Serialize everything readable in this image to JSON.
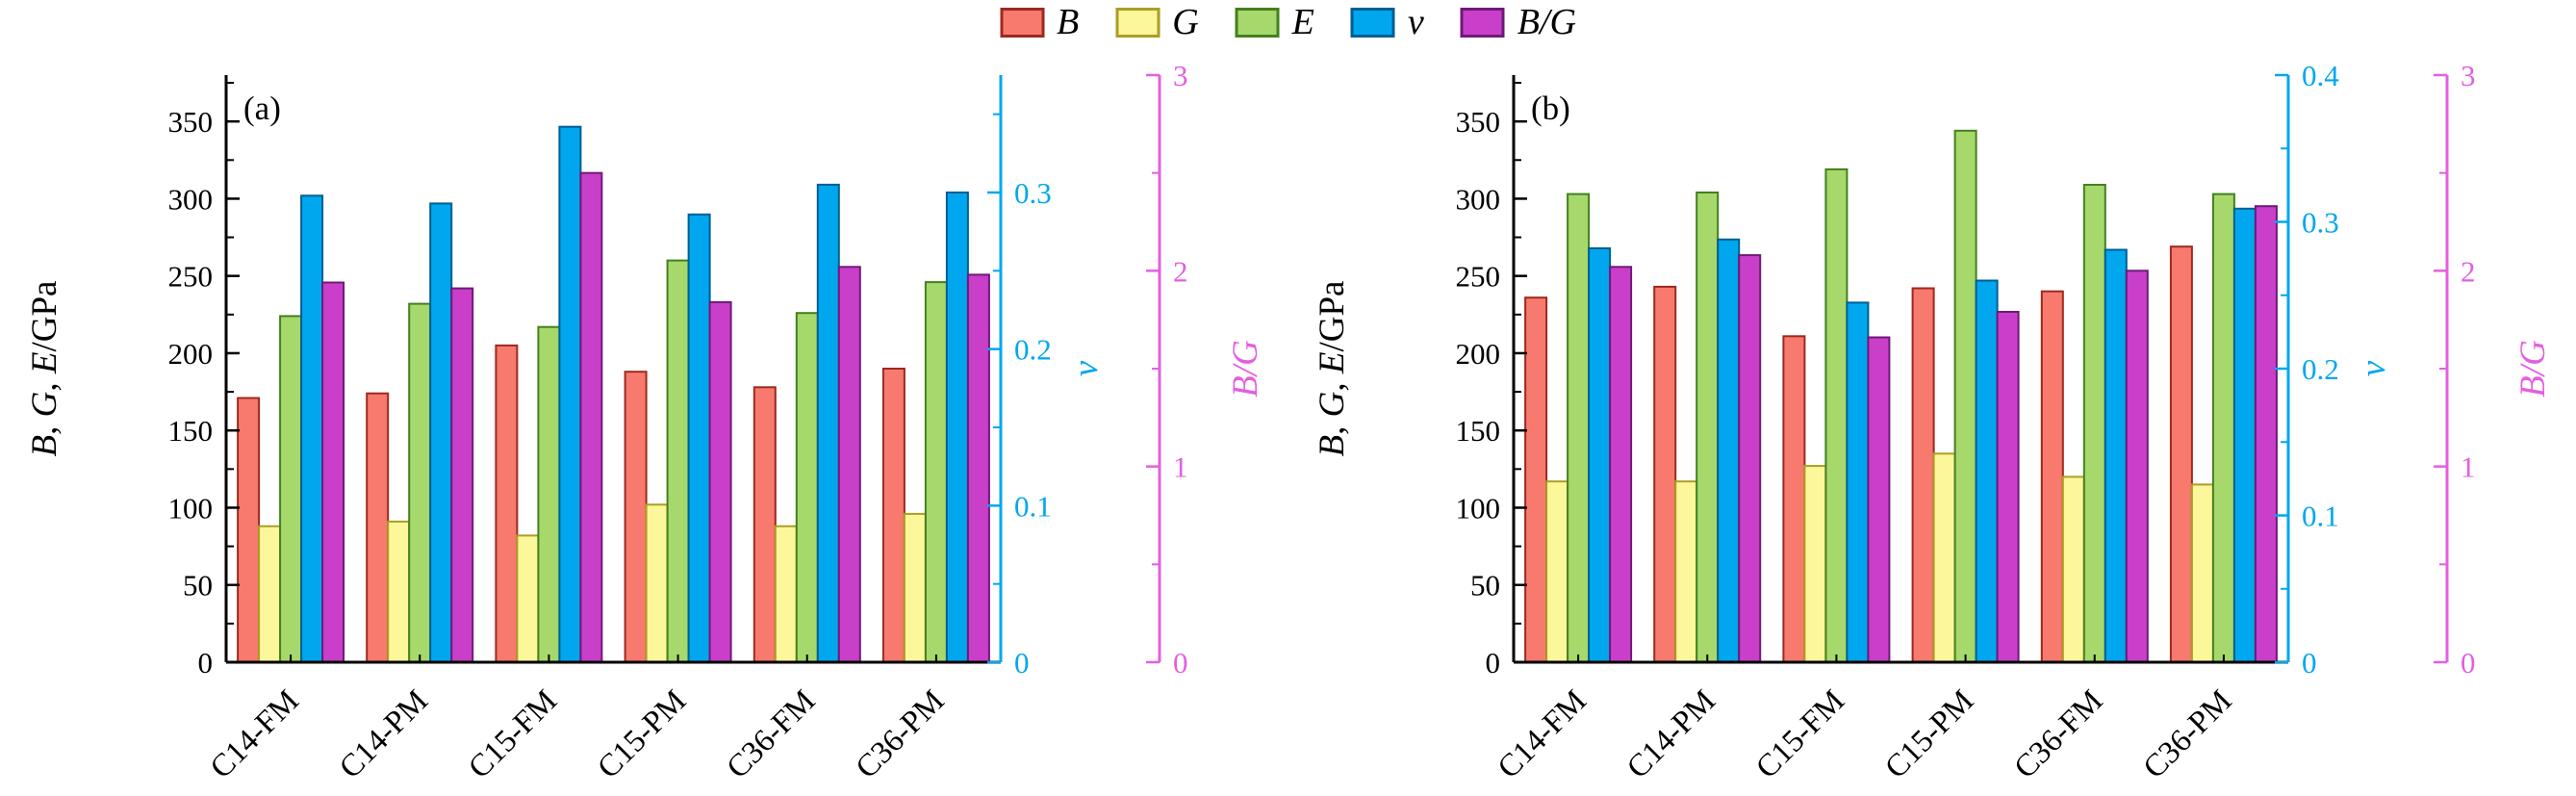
{
  "figure": {
    "background": "#ffffff"
  },
  "legend": {
    "items": [
      {
        "label": "B",
        "series": "B"
      },
      {
        "label": "G",
        "series": "G"
      },
      {
        "label": "E",
        "series": "E"
      },
      {
        "label": "ν",
        "series": "nu"
      },
      {
        "label": "B/G",
        "series": "bg"
      }
    ]
  },
  "style": {
    "series": {
      "B": {
        "fill": "#f8796e",
        "edge": "#9c2a1e"
      },
      "G": {
        "fill": "#fdf79b",
        "edge": "#ab9d24"
      },
      "E": {
        "fill": "#a6d86c",
        "edge": "#44801f"
      },
      "nu": {
        "fill": "#00a7ef",
        "edge": "#005f92"
      },
      "bg": {
        "fill": "#c93fc9",
        "edge": "#6e1a78"
      }
    },
    "axes": {
      "black": "#000000",
      "nu": "#00a7ef",
      "bg": "#e45fe0"
    }
  },
  "chart_data": [
    {
      "type": "bar",
      "panel_label": "(a)",
      "categories": [
        "C14-FM",
        "C14-PM",
        "C15-FM",
        "C15-PM",
        "C36-FM",
        "C36-PM"
      ],
      "series": [
        {
          "key": "B",
          "name": "B",
          "axis": "gpa",
          "values": [
            171,
            174,
            205,
            188,
            178,
            190
          ]
        },
        {
          "key": "G",
          "name": "G",
          "axis": "gpa",
          "values": [
            88,
            91,
            82,
            102,
            88,
            96
          ]
        },
        {
          "key": "E",
          "name": "E",
          "axis": "gpa",
          "values": [
            224,
            232,
            217,
            260,
            226,
            246
          ]
        },
        {
          "key": "nu",
          "name": "ν",
          "axis": "nu",
          "values": [
            0.298,
            0.293,
            0.342,
            0.286,
            0.305,
            0.3
          ]
        },
        {
          "key": "bg",
          "name": "B/G",
          "axis": "bg",
          "values": [
            1.94,
            1.91,
            2.5,
            1.84,
            2.02,
            1.98
          ]
        }
      ],
      "axes": {
        "gpa": {
          "label": "B, G, E/GPa",
          "label_parts": [
            [
              "B",
              true
            ],
            [
              ", ",
              false
            ],
            [
              "G",
              true
            ],
            [
              ", ",
              false
            ],
            [
              "E",
              true
            ],
            [
              "/GPa",
              false
            ]
          ],
          "ticks": [
            0,
            50,
            100,
            150,
            200,
            250,
            300,
            350
          ],
          "range": [
            0,
            380
          ]
        },
        "nu": {
          "label": "ν",
          "label_parts": [
            [
              "ν",
              true
            ]
          ],
          "ticks": [
            0,
            0.1,
            0.2,
            0.3
          ],
          "range": [
            0,
            0.375
          ]
        },
        "bg": {
          "label": "B/G",
          "label_parts": [
            [
              "B",
              true
            ],
            [
              "/",
              true
            ],
            [
              "G",
              true
            ]
          ],
          "ticks": [
            0,
            1,
            2,
            3
          ],
          "range": [
            0,
            3
          ]
        }
      }
    },
    {
      "type": "bar",
      "panel_label": "(b)",
      "categories": [
        "C14-FM",
        "C14-PM",
        "C15-FM",
        "C15-PM",
        "C36-FM",
        "C36-PM"
      ],
      "series": [
        {
          "key": "B",
          "name": "B",
          "axis": "gpa",
          "values": [
            236,
            243,
            211,
            242,
            240,
            269
          ]
        },
        {
          "key": "G",
          "name": "G",
          "axis": "gpa",
          "values": [
            117,
            117,
            127,
            135,
            120,
            115
          ]
        },
        {
          "key": "E",
          "name": "E",
          "axis": "gpa",
          "values": [
            303,
            304,
            319,
            344,
            309,
            303
          ]
        },
        {
          "key": "nu",
          "name": "ν",
          "axis": "nu",
          "values": [
            0.282,
            0.288,
            0.245,
            0.26,
            0.281,
            0.309
          ]
        },
        {
          "key": "bg",
          "name": "B/G",
          "axis": "bg",
          "values": [
            2.02,
            2.08,
            1.66,
            1.79,
            2.0,
            2.33
          ]
        }
      ],
      "axes": {
        "gpa": {
          "label": "B, G, E/GPa",
          "label_parts": [
            [
              "B",
              true
            ],
            [
              ", ",
              false
            ],
            [
              "G",
              true
            ],
            [
              ", ",
              false
            ],
            [
              "E",
              true
            ],
            [
              "/GPa",
              false
            ]
          ],
          "ticks": [
            0,
            50,
            100,
            150,
            200,
            250,
            300,
            350
          ],
          "range": [
            0,
            380
          ]
        },
        "nu": {
          "label": "ν",
          "label_parts": [
            [
              "ν",
              true
            ]
          ],
          "ticks": [
            0,
            0.1,
            0.2,
            0.3,
            0.4
          ],
          "range": [
            0,
            0.4
          ]
        },
        "bg": {
          "label": "B/G",
          "label_parts": [
            [
              "B",
              true
            ],
            [
              "/",
              true
            ],
            [
              "G",
              true
            ]
          ],
          "ticks": [
            0,
            1,
            2,
            3
          ],
          "range": [
            0,
            3
          ]
        }
      }
    }
  ]
}
